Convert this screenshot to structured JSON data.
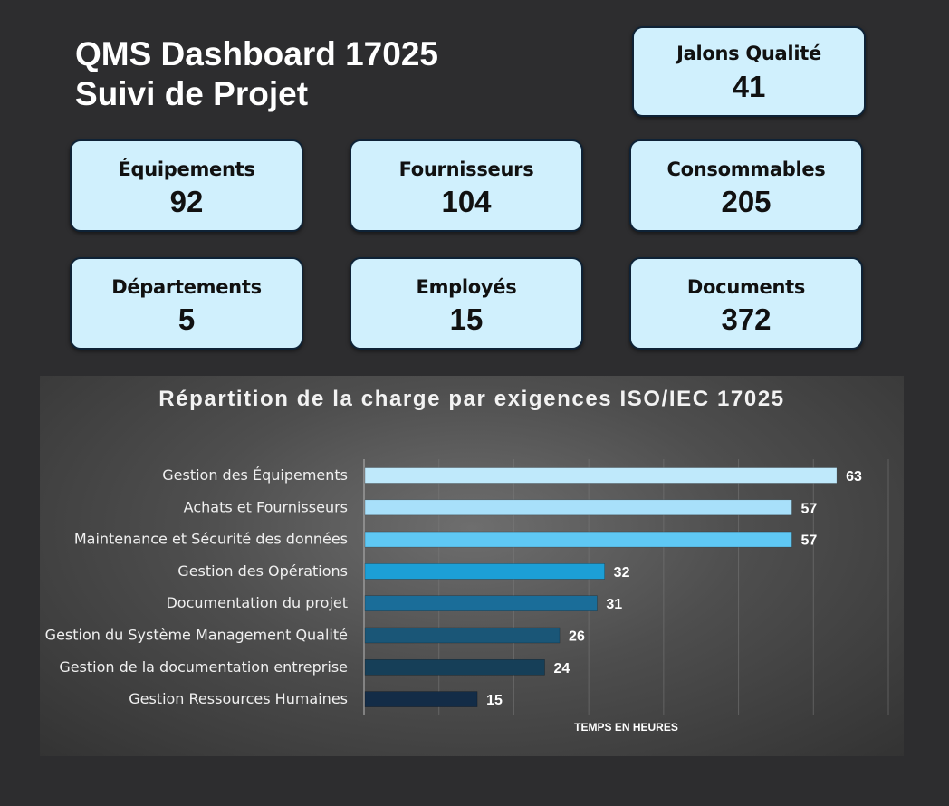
{
  "header": {
    "title_line1": "QMS Dashboard 17025",
    "title_line2": "Suivi de Projet"
  },
  "cards": {
    "jalons": {
      "label": "Jalons Qualité",
      "value": "41"
    },
    "equipements": {
      "label": "Équipements",
      "value": "92"
    },
    "fournisseurs": {
      "label": "Fournisseurs",
      "value": "104"
    },
    "consommables": {
      "label": "Consommables",
      "value": "205"
    },
    "departements": {
      "label": "Départements",
      "value": "5"
    },
    "employes": {
      "label": "Employés",
      "value": "15"
    },
    "documents": {
      "label": "Documents",
      "value": "372"
    }
  },
  "chart_data": {
    "type": "bar",
    "orientation": "horizontal",
    "title": "Répartition de la charge par exigences ISO/IEC 17025",
    "xlabel": "TEMPS EN HEURES",
    "ylabel": "",
    "xlim": [
      0,
      70
    ],
    "grid": true,
    "categories": [
      "Gestion des Équipements",
      "Achats et Fournisseurs",
      "Maintenance et Sécurité des données",
      "Gestion des Opérations",
      "Documentation du projet",
      "Gestion du Système Management Qualité",
      "Gestion de la documentation entreprise",
      "Gestion Ressources Humaines"
    ],
    "values": [
      63,
      57,
      57,
      32,
      31,
      26,
      24,
      15
    ],
    "colors": [
      "#bfe9fb",
      "#a8e0fa",
      "#5fc8f4",
      "#1c9fd6",
      "#1a6d99",
      "#1a5677",
      "#163f58",
      "#132c47"
    ]
  }
}
